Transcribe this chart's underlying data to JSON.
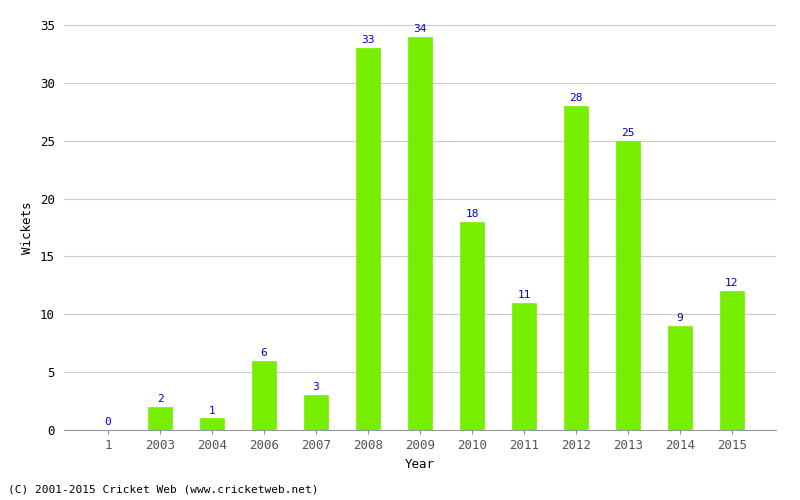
{
  "categories": [
    "1",
    "2003",
    "2004",
    "2006",
    "2007",
    "2008",
    "2009",
    "2010",
    "2011",
    "2012",
    "2013",
    "2014",
    "2015"
  ],
  "values": [
    0,
    2,
    1,
    6,
    3,
    33,
    34,
    18,
    11,
    28,
    25,
    9,
    12
  ],
  "bar_color": "#77ee00",
  "bar_edge_color": "#77ee00",
  "label_color": "#0000cc",
  "ylabel": "Wickets",
  "xlabel": "Year",
  "ylim": [
    0,
    35
  ],
  "yticks": [
    0,
    5,
    10,
    15,
    20,
    25,
    30,
    35
  ],
  "footer": "(C) 2001-2015 Cricket Web (www.cricketweb.net)",
  "background_color": "#ffffff",
  "grid_color": "#cccccc",
  "label_fontsize": 8,
  "axis_fontsize": 9,
  "footer_fontsize": 8,
  "bar_width": 0.45
}
